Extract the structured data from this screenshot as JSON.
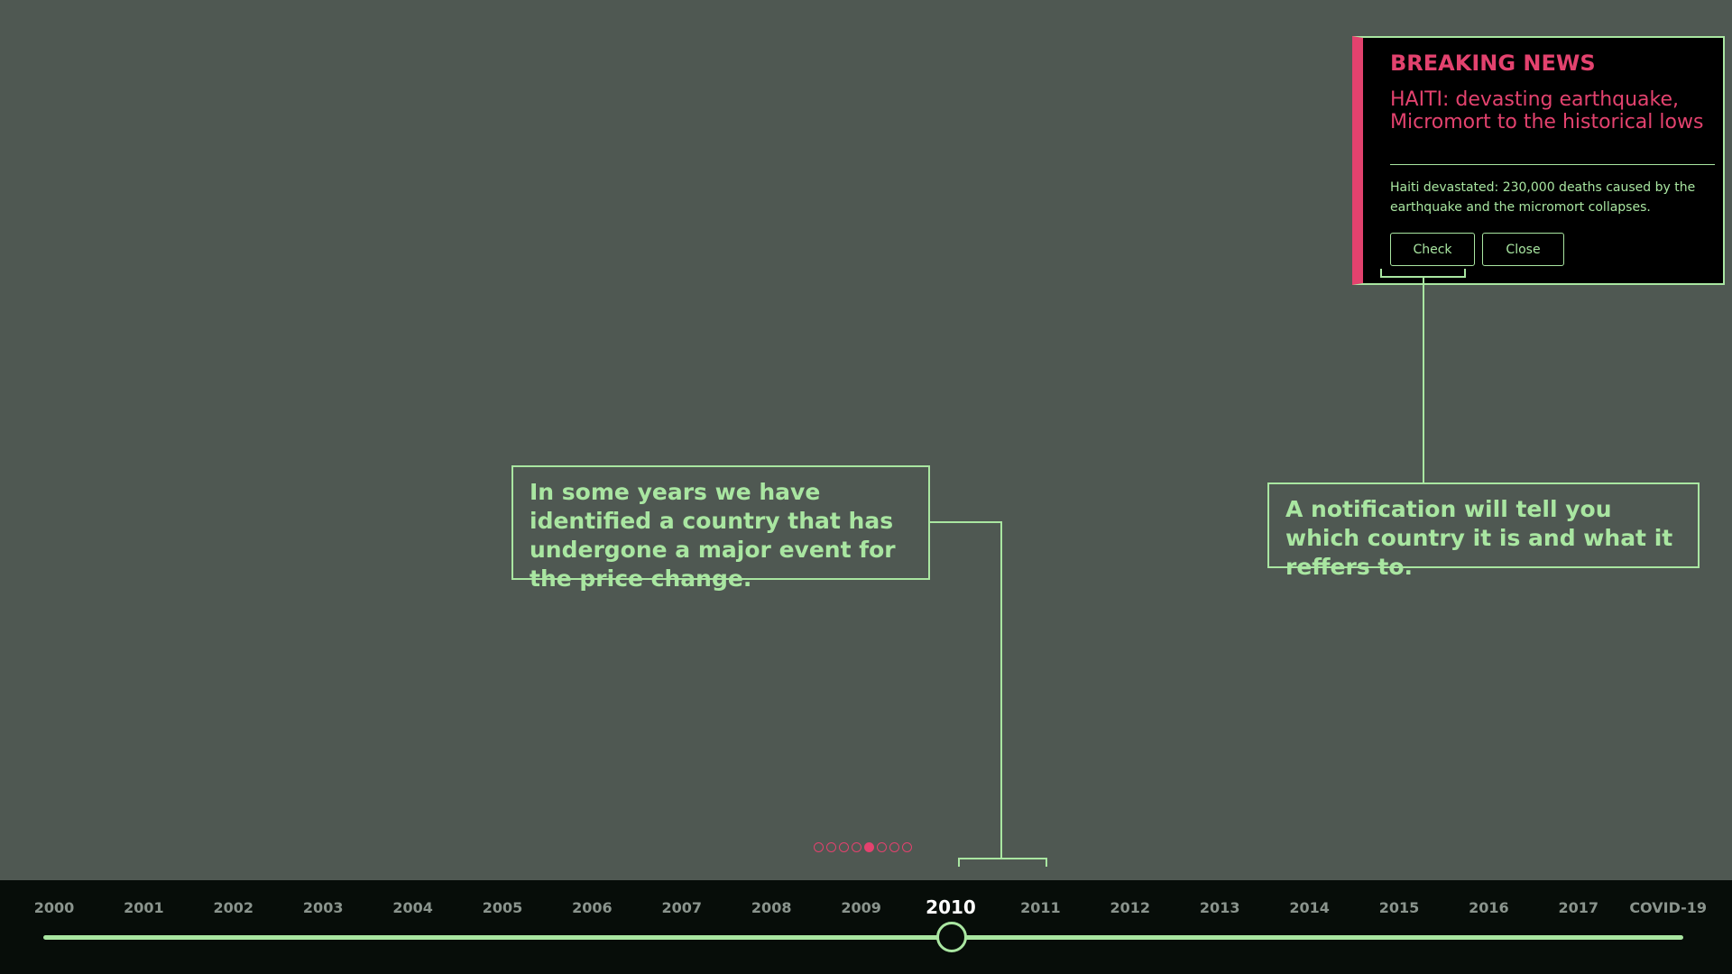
{
  "notification": {
    "kicker": "BREAKING NEWS",
    "headline": "HAITI: devasting earthquake, Micromort to the historical lows",
    "body": "Haiti devastated: 230,000 deaths caused by the earthquake and the micromort collapses.",
    "check_label": "Check",
    "close_label": "Close"
  },
  "callouts": {
    "left": "In some years we have identified a country that has undergone a major event for the price change.",
    "right": "A notification will tell you which country it is and what it reffers to."
  },
  "pagination": {
    "count": 8,
    "active_index": 4
  },
  "timeline": {
    "years": [
      "2000",
      "2001",
      "2002",
      "2003",
      "2004",
      "2005",
      "2006",
      "2007",
      "2008",
      "2009",
      "2010",
      "2011",
      "2012",
      "2013",
      "2014",
      "2015",
      "2016",
      "2017",
      "COVID-19"
    ],
    "selected": "2010"
  },
  "colors": {
    "accent_green": "#a9e6a1",
    "accent_pink": "#e3426e",
    "background": "#4f5852",
    "timeline_bg": "#070d09"
  }
}
